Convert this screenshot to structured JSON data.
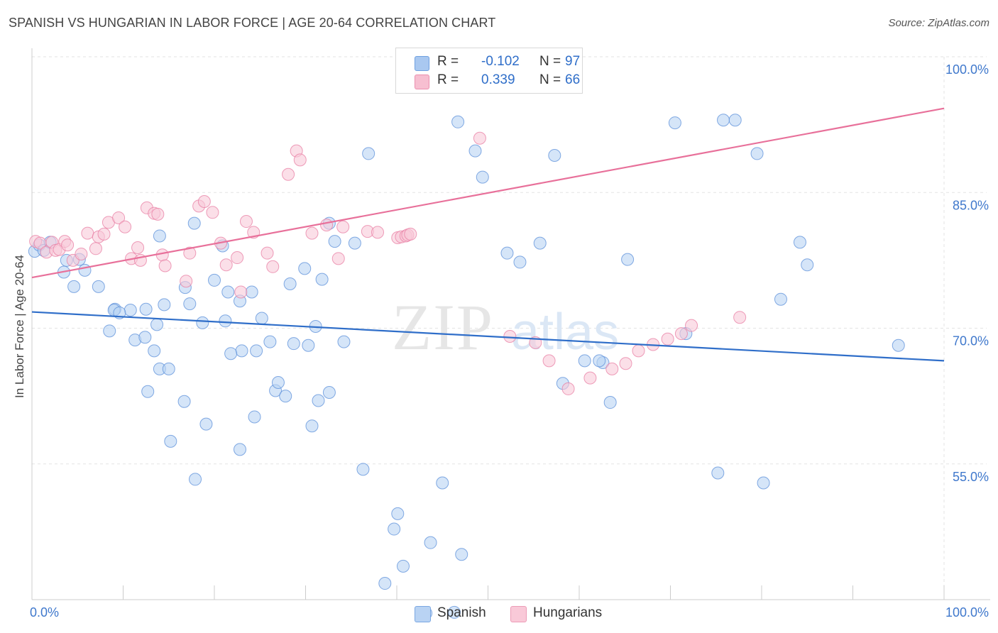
{
  "title": "SPANISH VS HUNGARIAN IN LABOR FORCE | AGE 20-64 CORRELATION CHART",
  "source": "Source: ZipAtlas.com",
  "watermark": {
    "zip": "ZIP",
    "atlas": "atlas"
  },
  "stats": [
    {
      "r_label": "R =",
      "r_value": "-0.102",
      "n_label": "N =",
      "n_value": "97",
      "color": "#a9c8f0",
      "border": "#6fa0e0"
    },
    {
      "r_label": "R =",
      "r_value": "0.339",
      "n_label": "N =",
      "n_value": "66",
      "color": "#f7bfd1",
      "border": "#eb8fae"
    }
  ],
  "legend": [
    {
      "label": "Spanish",
      "color": "#b9d3f3",
      "border": "#7aa7e2"
    },
    {
      "label": "Hungarians",
      "color": "#f9c9d8",
      "border": "#ec9bb6"
    }
  ],
  "chart_data": {
    "type": "scatter",
    "title": "SPANISH VS HUNGARIAN IN LABOR FORCE | AGE 20-64 CORRELATION CHART",
    "xlabel": "",
    "ylabel": "In Labor Force | Age 20-64",
    "xlim": [
      0,
      100
    ],
    "ylim": [
      40,
      100
    ],
    "x_tick_labels": [
      {
        "value": 0,
        "label": "0.0%"
      },
      {
        "value": 100,
        "label": "100.0%"
      }
    ],
    "y_tick_labels": [
      {
        "value": 100,
        "label": "100.0%"
      },
      {
        "value": 85,
        "label": "85.0%"
      },
      {
        "value": 70,
        "label": "70.0%"
      },
      {
        "value": 55,
        "label": "55.0%"
      }
    ],
    "grid": true,
    "legend_position": "bottom",
    "series": [
      {
        "name": "Spanish",
        "color": "#5b8fd9",
        "fill": "#b9d3f3",
        "trend": {
          "x": [
            0,
            100
          ],
          "y": [
            71.8,
            66.4
          ],
          "color": "#2f6ec9"
        },
        "x": [
          0.3,
          0.8,
          1.3,
          2.0,
          3.8,
          5.2,
          3.5,
          5.8,
          4.6,
          7.3,
          9.1,
          10.8,
          9.0,
          8.5,
          11.3,
          12.5,
          9.6,
          13.7,
          13.4,
          14.0,
          15.0,
          12.7,
          12.4,
          14.5,
          16.7,
          14.0,
          17.8,
          15.2,
          17.9,
          16.8,
          18.7,
          17.3,
          19.1,
          20.0,
          21.5,
          21.2,
          20.9,
          23.0,
          21.8,
          22.8,
          24.1,
          22.8,
          26.7,
          25.2,
          24.4,
          27.0,
          27.8,
          24.6,
          26.1,
          29.9,
          30.3,
          28.3,
          28.7,
          31.4,
          32.6,
          34.2,
          31.8,
          31.1,
          33.2,
          35.4,
          36.9,
          32.6,
          30.7,
          36.3,
          40.1,
          39.7,
          38.7,
          40.7,
          43.7,
          47.1,
          43.2,
          46.3,
          45.0,
          46.7,
          48.6,
          49.4,
          53.5,
          55.7,
          52.1,
          57.3,
          62.6,
          62.2,
          58.2,
          60.6,
          63.4,
          65.3,
          70.5,
          75.8,
          77.1,
          80.2,
          75.2,
          71.7,
          79.5,
          85.0,
          84.2,
          95.0,
          82.1
        ],
        "y": [
          78.5,
          79.2,
          78.6,
          79.5,
          77.5,
          77.6,
          76.2,
          76.4,
          74.6,
          74.6,
          72.1,
          72.0,
          72.0,
          69.7,
          68.7,
          72.1,
          71.7,
          70.4,
          67.5,
          65.5,
          65.5,
          63.0,
          69.0,
          72.6,
          61.9,
          80.2,
          81.6,
          57.5,
          53.3,
          74.5,
          70.6,
          72.7,
          59.4,
          75.3,
          74.0,
          70.8,
          79.1,
          67.5,
          67.2,
          56.6,
          74.0,
          73.0,
          63.1,
          71.1,
          60.2,
          64.0,
          62.5,
          67.5,
          68.5,
          76.6,
          68.1,
          74.9,
          68.3,
          62.0,
          62.9,
          68.5,
          75.4,
          70.2,
          79.6,
          79.4,
          89.3,
          81.6,
          59.2,
          54.4,
          49.5,
          47.8,
          41.8,
          43.7,
          46.3,
          45.0,
          38.5,
          38.6,
          52.9,
          92.8,
          89.6,
          86.7,
          77.3,
          79.4,
          78.3,
          89.1,
          66.2,
          66.4,
          63.9,
          66.4,
          61.8,
          77.6,
          92.7,
          93.0,
          93.0,
          52.9,
          54.0,
          69.4,
          89.3,
          77.0,
          79.5,
          68.1,
          73.2
        ]
      },
      {
        "name": "Hungarians",
        "color": "#e87ea3",
        "fill": "#f9c9d8",
        "trend": {
          "x": [
            0,
            100
          ],
          "y": [
            75.6,
            94.3
          ],
          "color": "#e8709a"
        },
        "x": [
          0.4,
          0.9,
          1.6,
          2.2,
          2.6,
          3.0,
          3.6,
          3.9,
          4.5,
          5.4,
          6.1,
          7.0,
          7.3,
          7.9,
          8.4,
          9.5,
          10.2,
          10.9,
          11.6,
          11.9,
          12.6,
          13.4,
          13.8,
          14.3,
          14.6,
          16.9,
          17.3,
          18.3,
          18.9,
          19.8,
          20.7,
          21.3,
          22.5,
          22.9,
          23.5,
          24.3,
          25.8,
          26.4,
          28.1,
          29.0,
          29.4,
          30.7,
          32.3,
          33.6,
          34.1,
          36.8,
          37.9,
          40.1,
          40.5,
          41.0,
          41.2,
          41.5,
          49.1,
          52.4,
          55.2,
          56.7,
          58.8,
          61.2,
          63.6,
          65.1,
          66.5,
          68.1,
          69.7,
          71.2,
          72.3,
          77.6
        ],
        "y": [
          79.6,
          79.4,
          78.4,
          79.5,
          78.6,
          78.7,
          79.6,
          79.2,
          77.5,
          78.2,
          80.5,
          78.8,
          80.1,
          80.4,
          81.7,
          82.2,
          81.2,
          77.7,
          78.9,
          77.5,
          83.3,
          82.7,
          82.6,
          78.1,
          76.9,
          75.2,
          78.3,
          83.5,
          84.0,
          82.8,
          79.4,
          77.0,
          77.8,
          74.0,
          81.8,
          80.6,
          78.3,
          76.8,
          87.0,
          89.6,
          88.6,
          80.5,
          81.4,
          77.7,
          81.2,
          80.7,
          80.6,
          80.0,
          80.1,
          80.2,
          80.3,
          80.4,
          91.0,
          69.1,
          68.4,
          66.4,
          63.3,
          64.5,
          65.5,
          66.1,
          67.5,
          68.2,
          68.8,
          69.4,
          70.3,
          71.2
        ]
      }
    ]
  }
}
